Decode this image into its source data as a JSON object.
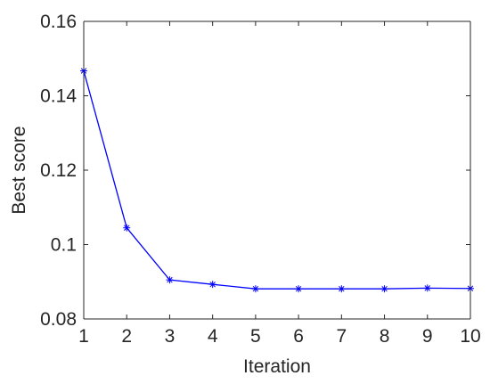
{
  "chart_data": {
    "type": "line",
    "title": "",
    "xlabel": "Iteration",
    "ylabel": "Best score",
    "xlim": [
      1,
      10
    ],
    "ylim": [
      0.08,
      0.16
    ],
    "x": [
      1,
      2,
      3,
      4,
      5,
      6,
      7,
      8,
      9,
      10
    ],
    "xticks": [
      1,
      2,
      3,
      4,
      5,
      6,
      7,
      8,
      9,
      10
    ],
    "yticks": [
      0.08,
      0.1,
      0.12,
      0.14,
      0.16
    ],
    "ytick_labels": [
      "0.08",
      "0.1",
      "0.12",
      "0.14",
      "0.16"
    ],
    "grid": false,
    "series": [
      {
        "values": [
          0.1467,
          0.1045,
          0.0905,
          0.0893,
          0.0881,
          0.0881,
          0.0881,
          0.0881,
          0.0883,
          0.0882
        ],
        "color": "#0000ff",
        "marker": "asterisk"
      }
    ]
  }
}
